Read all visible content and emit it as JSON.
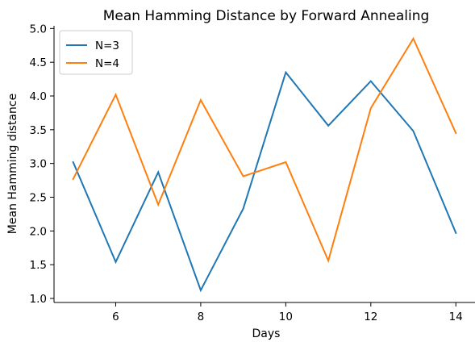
{
  "chart_data": {
    "type": "line",
    "title": "Mean Hamming Distance by Forward Annealing",
    "xlabel": "Days",
    "ylabel": "Mean Hamming distance",
    "xlim": [
      4.55,
      14.45
    ],
    "ylim": [
      0.94,
      5.04
    ],
    "xticks": [
      6,
      8,
      10,
      12,
      14
    ],
    "yticks": [
      1.0,
      1.5,
      2.0,
      2.5,
      3.0,
      3.5,
      4.0,
      4.5,
      5.0
    ],
    "ytick_labels": [
      "1.0",
      "1.5",
      "2.0",
      "2.5",
      "3.0",
      "3.5",
      "4.0",
      "4.5",
      "5.0"
    ],
    "grid": false,
    "legend_position": "upper-left",
    "x": [
      5,
      6,
      7,
      8,
      9,
      10,
      11,
      12,
      13,
      14
    ],
    "series": [
      {
        "name": "N=3",
        "color": "#1f77b4",
        "values": [
          3.02,
          1.54,
          2.87,
          1.12,
          2.33,
          4.35,
          3.56,
          4.22,
          3.48,
          1.97
        ]
      },
      {
        "name": "N=4",
        "color": "#ff7f0e",
        "values": [
          2.77,
          4.02,
          2.39,
          3.94,
          2.81,
          3.02,
          1.56,
          3.82,
          4.85,
          3.45
        ]
      }
    ]
  }
}
